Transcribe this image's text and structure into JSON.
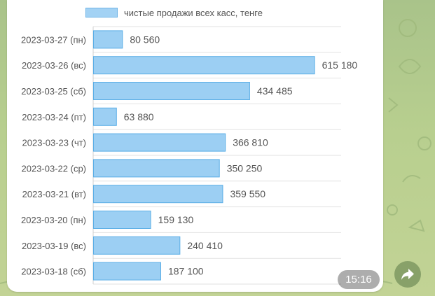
{
  "message": {
    "time": "15:16",
    "share_icon": "share-arrow-icon"
  },
  "chart_data": {
    "type": "bar",
    "orientation": "horizontal",
    "legend": "чистые продажи всех касс, тенге",
    "legend_position": "top",
    "categories": [
      "2023-03-27 (пн)",
      "2023-03-26 (вс)",
      "2023-03-25 (сб)",
      "2023-03-24 (пт)",
      "2023-03-23 (чт)",
      "2023-03-22 (ср)",
      "2023-03-21 (вт)",
      "2023-03-20 (пн)",
      "2023-03-19 (вс)",
      "2023-03-18 (сб)"
    ],
    "values": [
      80560,
      615180,
      434485,
      63880,
      366810,
      350250,
      359550,
      159130,
      240410,
      187100
    ],
    "value_labels": [
      "80 560",
      "615 180",
      "434 485",
      "63 880",
      "366 810",
      "350 250",
      "359 550",
      "159 130",
      "240 410",
      "187 100"
    ],
    "xlim": [
      0,
      690000
    ],
    "grid": true,
    "colors": {
      "bar_fill": "#9ccff3",
      "bar_stroke": "#5aaee6"
    }
  }
}
